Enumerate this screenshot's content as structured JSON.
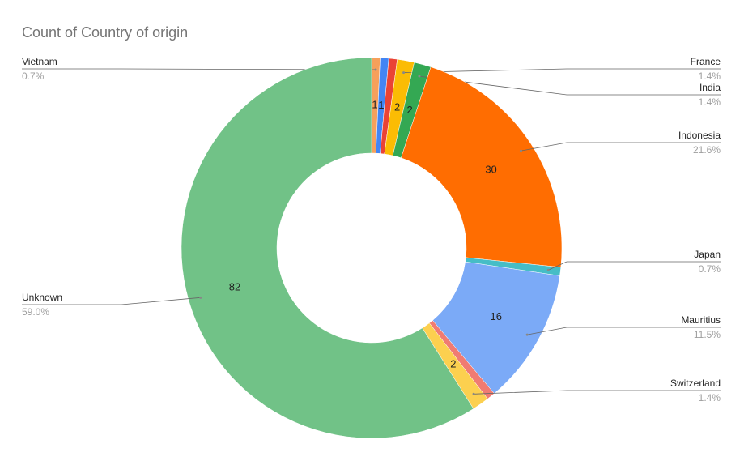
{
  "chart_data": {
    "type": "donut",
    "title": "Count of Country of origin",
    "categories": [
      "Vietnam",
      null,
      null,
      "France",
      "India",
      "Indonesia",
      "Japan",
      "Mauritius",
      null,
      "Switzerland",
      "Unknown"
    ],
    "values": [
      1,
      1,
      1,
      2,
      2,
      30,
      1,
      16,
      1,
      2,
      82
    ],
    "value_labels": [
      "1",
      "1",
      null,
      "2",
      "2",
      "30",
      null,
      "16",
      null,
      "2",
      "82"
    ],
    "percent_labels": [
      "0.7%",
      null,
      null,
      "1.4%",
      "1.4%",
      "21.6%",
      "0.7%",
      "11.5%",
      null,
      "1.4%",
      "59.0%"
    ],
    "colors": [
      "#f6a05b",
      "#4285f4",
      "#ea4335",
      "#fbbc04",
      "#34a853",
      "#ff6d01",
      "#46bdc6",
      "#7baaf7",
      "#f07b72",
      "#fcd04f",
      "#71c287"
    ]
  }
}
